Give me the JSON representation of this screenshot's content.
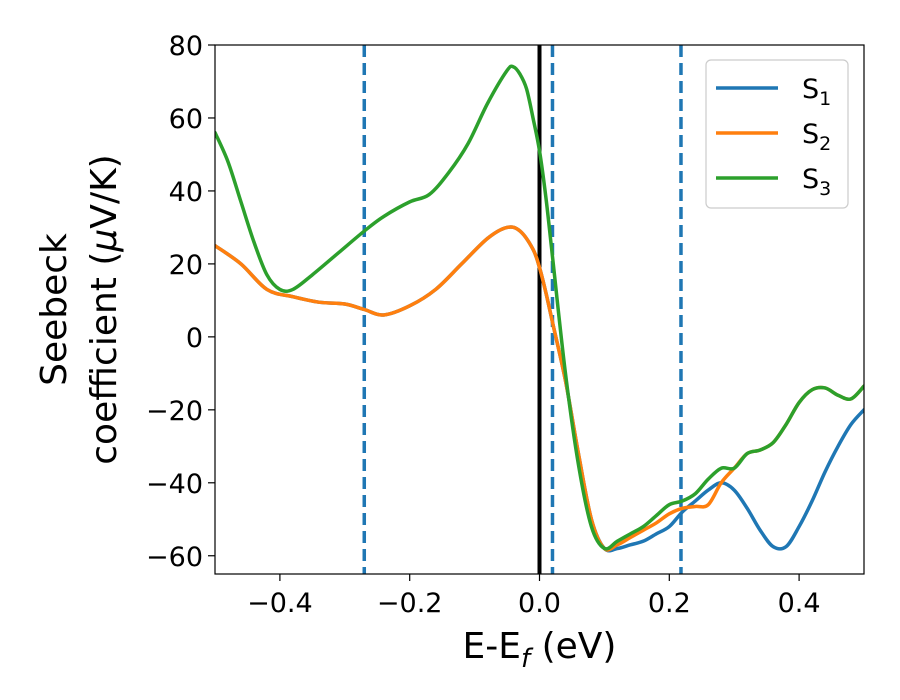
{
  "chart_data": {
    "type": "line",
    "xlabel_main": "E-E",
    "xlabel_sub": "f",
    "xlabel_unit": " (eV)",
    "ylabel_line1": "Seebeck",
    "ylabel_line2_pre": "coefficient  (",
    "ylabel_mu": "μ",
    "ylabel_line2_post": "V/K)",
    "xlim": [
      -0.5,
      0.5
    ],
    "ylim": [
      -65,
      80
    ],
    "x_ticks": [
      {
        "value": -0.4,
        "label": "−0.4"
      },
      {
        "value": -0.2,
        "label": "−0.2"
      },
      {
        "value": 0.0,
        "label": "0.0"
      },
      {
        "value": 0.2,
        "label": "0.2"
      },
      {
        "value": 0.4,
        "label": "0.4"
      }
    ],
    "y_ticks": [
      {
        "value": 80,
        "label": "80"
      },
      {
        "value": 60,
        "label": "60"
      },
      {
        "value": 40,
        "label": "40"
      },
      {
        "value": 20,
        "label": "20"
      },
      {
        "value": 0,
        "label": "0"
      },
      {
        "value": -20,
        "label": "−20"
      },
      {
        "value": -40,
        "label": "−40"
      },
      {
        "value": -60,
        "label": "−60"
      }
    ],
    "grid": false,
    "legend_position": "top-right",
    "vertical_lines": [
      {
        "x": -0.27,
        "style": "dashed",
        "color": "#1f77b4"
      },
      {
        "x": 0.0,
        "style": "solid",
        "color": "#000000"
      },
      {
        "x": 0.02,
        "style": "dashed",
        "color": "#1f77b4"
      },
      {
        "x": 0.218,
        "style": "dashed",
        "color": "#1f77b4"
      }
    ],
    "series": [
      {
        "name": "S",
        "sub": "1",
        "color": "#1f77b4",
        "points": [
          [
            -0.5,
            25
          ],
          [
            -0.46,
            20
          ],
          [
            -0.42,
            13
          ],
          [
            -0.38,
            11
          ],
          [
            -0.34,
            9.5
          ],
          [
            -0.3,
            9
          ],
          [
            -0.27,
            7.5
          ],
          [
            -0.24,
            6
          ],
          [
            -0.2,
            8.5
          ],
          [
            -0.16,
            13
          ],
          [
            -0.12,
            20
          ],
          [
            -0.08,
            27
          ],
          [
            -0.05,
            30
          ],
          [
            -0.03,
            29
          ],
          [
            -0.01,
            24
          ],
          [
            0.0,
            19
          ],
          [
            0.01,
            12
          ],
          [
            0.02,
            4
          ],
          [
            0.04,
            -12
          ],
          [
            0.06,
            -32
          ],
          [
            0.08,
            -50
          ],
          [
            0.1,
            -58
          ],
          [
            0.12,
            -58
          ],
          [
            0.14,
            -57
          ],
          [
            0.16,
            -56
          ],
          [
            0.18,
            -54
          ],
          [
            0.2,
            -52
          ],
          [
            0.22,
            -48
          ],
          [
            0.24,
            -45
          ],
          [
            0.26,
            -42
          ],
          [
            0.28,
            -40
          ],
          [
            0.3,
            -42
          ],
          [
            0.32,
            -47
          ],
          [
            0.34,
            -53
          ],
          [
            0.36,
            -57.5
          ],
          [
            0.38,
            -57.5
          ],
          [
            0.4,
            -52
          ],
          [
            0.42,
            -45
          ],
          [
            0.44,
            -37
          ],
          [
            0.46,
            -30
          ],
          [
            0.48,
            -24
          ],
          [
            0.5,
            -20
          ]
        ]
      },
      {
        "name": "S",
        "sub": "2",
        "color": "#ff7f0e",
        "points": [
          [
            -0.5,
            25
          ],
          [
            -0.46,
            20
          ],
          [
            -0.42,
            13
          ],
          [
            -0.38,
            11
          ],
          [
            -0.34,
            9.5
          ],
          [
            -0.3,
            9
          ],
          [
            -0.27,
            7.5
          ],
          [
            -0.24,
            6
          ],
          [
            -0.2,
            8.5
          ],
          [
            -0.16,
            13
          ],
          [
            -0.12,
            20
          ],
          [
            -0.08,
            27
          ],
          [
            -0.05,
            30
          ],
          [
            -0.03,
            29
          ],
          [
            -0.01,
            24
          ],
          [
            0.0,
            19
          ],
          [
            0.01,
            12
          ],
          [
            0.02,
            4
          ],
          [
            0.04,
            -12
          ],
          [
            0.06,
            -32
          ],
          [
            0.08,
            -50
          ],
          [
            0.1,
            -58
          ],
          [
            0.12,
            -57
          ],
          [
            0.14,
            -55
          ],
          [
            0.16,
            -53
          ],
          [
            0.18,
            -51
          ],
          [
            0.2,
            -48.5
          ],
          [
            0.22,
            -47
          ],
          [
            0.24,
            -46.5
          ],
          [
            0.26,
            -46
          ],
          [
            0.28,
            -40
          ],
          [
            0.3,
            -36
          ],
          [
            0.32,
            -32
          ],
          [
            0.34,
            -31
          ],
          [
            0.36,
            -29
          ],
          [
            0.38,
            -24
          ],
          [
            0.4,
            -18
          ],
          [
            0.42,
            -14.5
          ],
          [
            0.44,
            -14
          ],
          [
            0.46,
            -16
          ],
          [
            0.48,
            -17
          ],
          [
            0.5,
            -13.5
          ]
        ]
      },
      {
        "name": "S",
        "sub": "3",
        "color": "#2ca02c",
        "points": [
          [
            -0.5,
            56
          ],
          [
            -0.48,
            48
          ],
          [
            -0.46,
            37
          ],
          [
            -0.44,
            26
          ],
          [
            -0.42,
            17
          ],
          [
            -0.4,
            13
          ],
          [
            -0.38,
            13
          ],
          [
            -0.35,
            17
          ],
          [
            -0.31,
            23
          ],
          [
            -0.27,
            29
          ],
          [
            -0.24,
            33
          ],
          [
            -0.2,
            37
          ],
          [
            -0.17,
            39
          ],
          [
            -0.14,
            45
          ],
          [
            -0.11,
            53
          ],
          [
            -0.08,
            64
          ],
          [
            -0.05,
            73
          ],
          [
            -0.04,
            74
          ],
          [
            -0.03,
            72
          ],
          [
            -0.02,
            68
          ],
          [
            -0.01,
            60
          ],
          [
            0.0,
            51
          ],
          [
            0.01,
            38
          ],
          [
            0.02,
            22
          ],
          [
            0.04,
            -10
          ],
          [
            0.06,
            -35
          ],
          [
            0.08,
            -52
          ],
          [
            0.1,
            -58
          ],
          [
            0.12,
            -56
          ],
          [
            0.14,
            -54
          ],
          [
            0.16,
            -52
          ],
          [
            0.18,
            -49
          ],
          [
            0.2,
            -46
          ],
          [
            0.22,
            -45
          ],
          [
            0.24,
            -43
          ],
          [
            0.26,
            -39
          ],
          [
            0.28,
            -36
          ],
          [
            0.3,
            -36
          ],
          [
            0.32,
            -32
          ],
          [
            0.34,
            -31
          ],
          [
            0.36,
            -29
          ],
          [
            0.38,
            -24
          ],
          [
            0.4,
            -18
          ],
          [
            0.42,
            -14.5
          ],
          [
            0.44,
            -14
          ],
          [
            0.46,
            -16
          ],
          [
            0.48,
            -17
          ],
          [
            0.5,
            -13.5
          ]
        ]
      }
    ]
  }
}
